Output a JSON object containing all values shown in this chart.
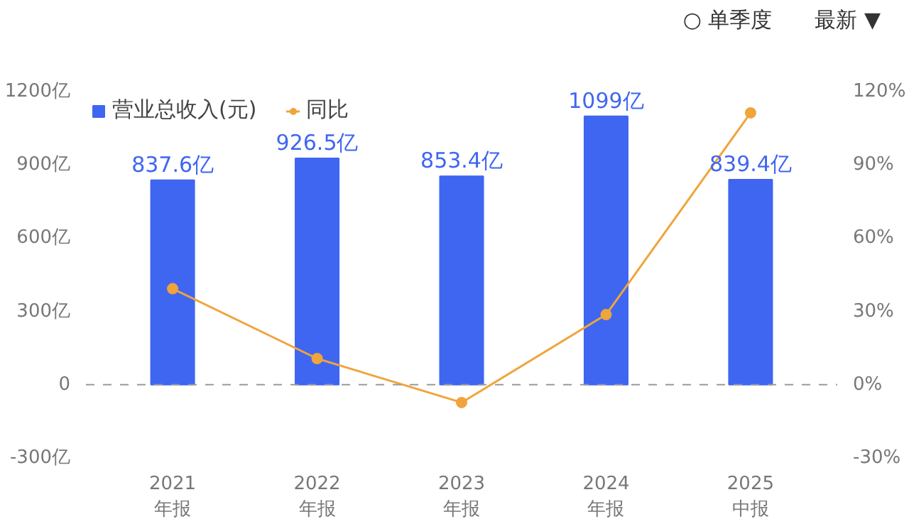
{
  "chart_data": {
    "type": "bar",
    "categories": [
      "2021\n年报",
      "2022\n年报",
      "2023\n年报",
      "2024\n年报",
      "2025\n中报"
    ],
    "series": [
      {
        "name": "营业总收入(元)",
        "color": "#3f66f0",
        "values": [
          837.6,
          926.5,
          853.4,
          1099,
          839.4
        ],
        "value_labels": [
          "837.6亿",
          "926.5亿",
          "853.4亿",
          "1099亿",
          "839.4亿"
        ]
      },
      {
        "name": "同比",
        "type": "line",
        "axis": "y2",
        "color": "#f0a43c",
        "marker": "circle",
        "values": [
          39.3,
          10.7,
          -7.3,
          28.7,
          111.3
        ]
      }
    ],
    "ylim": [
      -300,
      1200
    ],
    "yticks": [
      {
        "value": -300,
        "label": "-300亿"
      },
      {
        "value": 0,
        "label": "0"
      },
      {
        "value": 300,
        "label": "300亿"
      },
      {
        "value": 600,
        "label": "600亿"
      },
      {
        "value": 900,
        "label": "900亿"
      },
      {
        "value": 1200,
        "label": "1200亿"
      }
    ],
    "y2lim": [
      -30,
      120
    ],
    "y2ticks": [
      {
        "value": -30,
        "label": "-30%"
      },
      {
        "value": 0,
        "label": "0%"
      },
      {
        "value": 30,
        "label": "30%"
      },
      {
        "value": 60,
        "label": "60%"
      },
      {
        "value": 90,
        "label": "90%"
      },
      {
        "value": 120,
        "label": "120%"
      }
    ],
    "ref_lines": [
      {
        "axis": "y",
        "value": 0,
        "color": "#9a9a9a",
        "line_style": "dashed"
      }
    ],
    "grid": false,
    "legend": "top left",
    "annotations": [
      "○ 单季度",
      "最新 ▼"
    ]
  }
}
